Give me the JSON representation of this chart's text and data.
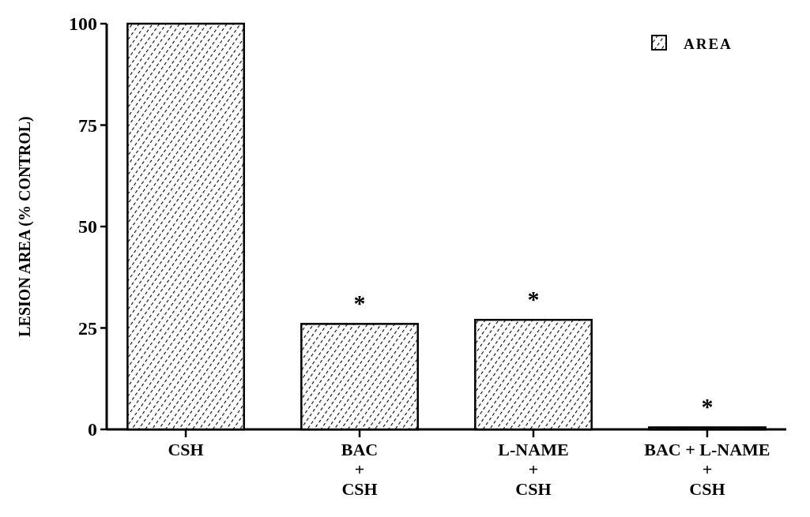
{
  "chart_data": {
    "type": "bar",
    "ylabel": "LESION AREA (% CONTROL)",
    "categories": [
      "CSH",
      "BAC\n+\nCSH",
      "L-NAME\n+\nCSH",
      "BAC + L-NAME\n+\nCSH"
    ],
    "series": [
      {
        "name": "AREA",
        "color": "#000000",
        "values": [
          100,
          26,
          27,
          0.5
        ]
      }
    ],
    "ylim": [
      0,
      100
    ],
    "yticks": [
      0,
      25,
      50,
      75,
      100
    ],
    "legend": "top right",
    "annotations": [
      {
        "text": "*",
        "x": "BAC\n+\nCSH",
        "y": 26
      },
      {
        "text": "*",
        "x": "L-NAME\n+\nCSH",
        "y": 27
      },
      {
        "text": "*",
        "x": "BAC + L-NAME\n+\nCSH",
        "y": 0.5
      }
    ]
  }
}
